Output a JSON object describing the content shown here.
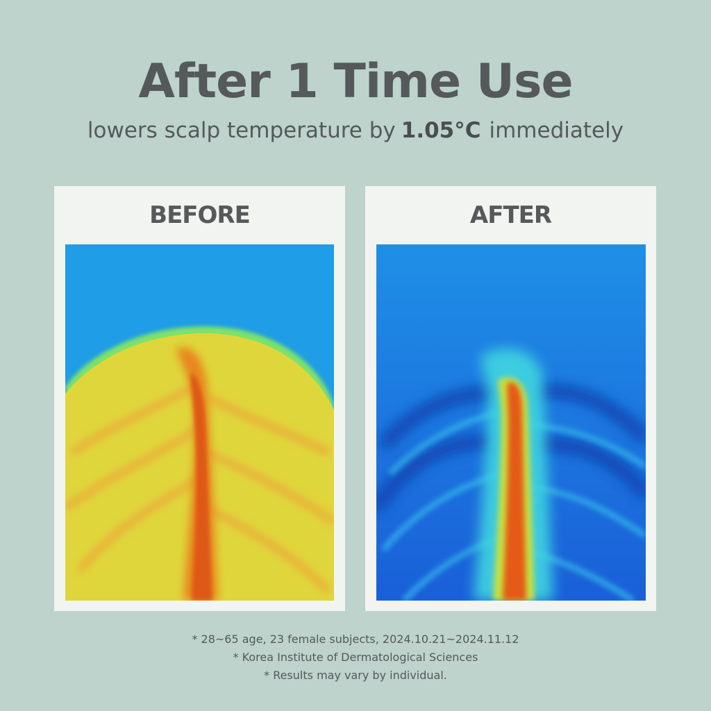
{
  "header": {
    "title": "After 1 Time Use",
    "subtitle": {
      "before": "lowers scalp temperature by",
      "highlight": "1.05°C",
      "after": "immediately"
    }
  },
  "panels": [
    {
      "label": "BEFORE"
    },
    {
      "label": "AFTER"
    }
  ],
  "footnotes": [
    "* 28~65 age, 23 female subjects, 2024.10.21~2024.11.12",
    "* Korea Institute of Dermatological Sciences",
    "* Results may vary by individual."
  ]
}
